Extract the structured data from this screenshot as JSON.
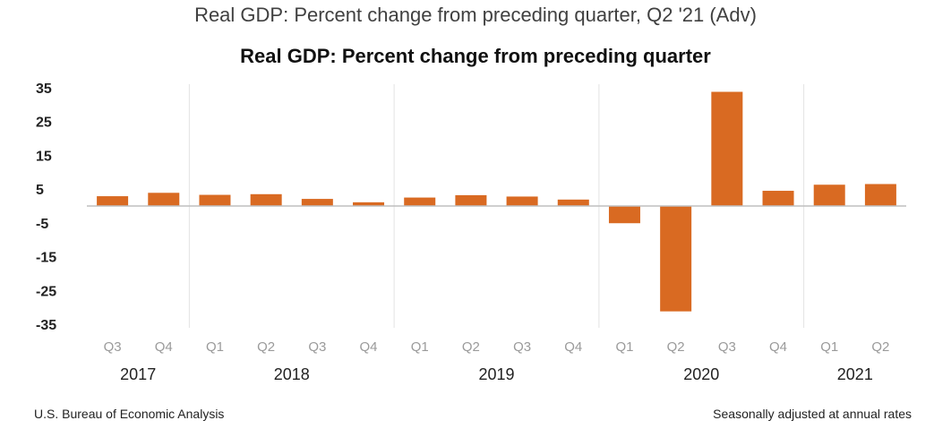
{
  "page": {
    "title": "Real GDP: Percent change from preceding quarter, Q2 '21 (Adv)"
  },
  "footer": {
    "source": "U.S. Bureau of Economic Analysis",
    "note": "Seasonally adjusted at annual rates"
  },
  "colors": {
    "bar": "#D96A22",
    "gridline": "#e3e3e3",
    "axis": "#bfbfbf",
    "quarter_label": "#9a9a9a",
    "year_label": "#222222"
  },
  "chart_data": {
    "type": "bar",
    "title": "Real GDP:  Percent change from preceding quarter",
    "xlabel": "",
    "ylabel": "",
    "ylim": [
      -35,
      35
    ],
    "yticks": [
      35,
      25,
      15,
      5,
      -5,
      -15,
      -25,
      -35
    ],
    "grid": "vertical separators between years",
    "legend": "none",
    "categories": [
      "Q3",
      "Q4",
      "Q1",
      "Q2",
      "Q3",
      "Q4",
      "Q1",
      "Q2",
      "Q3",
      "Q4",
      "Q1",
      "Q2",
      "Q3",
      "Q4",
      "Q1",
      "Q2"
    ],
    "values": [
      2.9,
      3.9,
      3.3,
      3.5,
      2.1,
      1.1,
      2.5,
      3.2,
      2.8,
      1.9,
      -5.1,
      -31.2,
      33.8,
      4.5,
      6.3,
      6.5
    ],
    "year_groups": [
      {
        "label": "2017",
        "count": 2
      },
      {
        "label": "2018",
        "count": 4
      },
      {
        "label": "2019",
        "count": 4
      },
      {
        "label": "2020",
        "count": 4
      },
      {
        "label": "2021",
        "count": 2
      }
    ]
  }
}
